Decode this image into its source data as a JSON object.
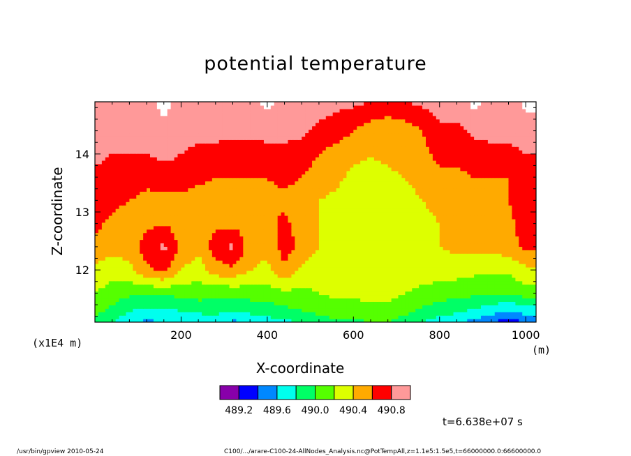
{
  "chart_data": {
    "type": "heatmap",
    "title": "potential temperature",
    "xlabel": "X-coordinate",
    "ylabel": "Z-coordinate",
    "x_scale_note": "(x1E4 m)",
    "x_unit": "(m)",
    "xlim": [
      0,
      1024
    ],
    "ylim": [
      11.1,
      14.9
    ],
    "x_ticks": [
      200,
      400,
      600,
      800,
      1000
    ],
    "x_tick_labels": [
      "200",
      "400",
      "600",
      "800",
      "1000"
    ],
    "y_ticks": [
      12,
      13,
      14
    ],
    "y_tick_labels": [
      "12",
      "13",
      "14"
    ],
    "time_label": "t=6.638e+07 s",
    "colorbar": {
      "levels": [
        489.0,
        489.2,
        489.4,
        489.6,
        489.8,
        490.0,
        490.2,
        490.4,
        490.6,
        490.8,
        491.0
      ],
      "colors": [
        "#8800aa",
        "#0000ff",
        "#0088ff",
        "#00ffee",
        "#00ff66",
        "#55ff00",
        "#ddff00",
        "#ffaa00",
        "#ff0000",
        "#ff9999"
      ],
      "labels": [
        "489.2",
        "489.6",
        "490.0",
        "490.4",
        "490.8"
      ],
      "label_values": [
        489.2,
        489.6,
        490.0,
        490.4,
        490.8
      ]
    },
    "field": {
      "x": [
        0,
        40,
        80,
        120,
        160,
        200,
        240,
        280,
        320,
        360,
        400,
        440,
        480,
        520,
        560,
        600,
        640,
        680,
        720,
        760,
        800,
        840,
        880,
        920,
        960,
        1000
      ],
      "z": [
        11.1,
        11.3,
        11.6,
        12.0,
        12.4,
        12.8,
        13.2,
        13.6,
        14.0,
        14.4,
        14.9
      ],
      "values": [
        [
          489.95,
          489.8,
          489.65,
          489.55,
          489.6,
          489.6,
          489.65,
          489.7,
          489.55,
          489.65,
          489.7,
          489.75,
          489.8,
          489.9,
          489.95,
          489.95,
          490.0,
          490.0,
          489.9,
          489.8,
          489.7,
          489.6,
          489.55,
          489.4,
          489.3,
          489.4
        ],
        [
          490.05,
          489.95,
          489.8,
          489.75,
          489.75,
          489.8,
          489.85,
          489.85,
          489.8,
          489.85,
          489.9,
          489.95,
          490.0,
          490.05,
          490.1,
          490.1,
          490.15,
          490.15,
          490.05,
          489.95,
          489.9,
          489.85,
          489.75,
          489.7,
          489.6,
          489.7
        ],
        [
          490.2,
          490.1,
          490.05,
          490.0,
          490.05,
          490.05,
          490.1,
          490.05,
          490.05,
          490.1,
          490.1,
          490.15,
          490.15,
          490.2,
          490.25,
          490.25,
          490.25,
          490.25,
          490.2,
          490.15,
          490.1,
          490.05,
          490.05,
          490.0,
          490.0,
          490.1
        ],
        [
          490.35,
          490.3,
          490.35,
          490.55,
          490.65,
          490.4,
          490.3,
          490.5,
          490.55,
          490.4,
          490.35,
          490.55,
          490.35,
          490.3,
          490.3,
          490.3,
          490.3,
          490.3,
          490.3,
          490.3,
          490.3,
          490.3,
          490.25,
          490.25,
          490.25,
          490.35
        ],
        [
          490.55,
          490.45,
          490.5,
          490.7,
          490.85,
          490.55,
          490.45,
          490.7,
          490.85,
          490.5,
          490.45,
          490.7,
          490.55,
          490.4,
          490.3,
          490.3,
          490.3,
          490.3,
          490.3,
          490.35,
          490.4,
          490.45,
          490.45,
          490.45,
          490.5,
          490.65
        ],
        [
          490.65,
          490.55,
          490.5,
          490.55,
          490.6,
          490.5,
          490.5,
          490.55,
          490.55,
          490.5,
          490.55,
          490.65,
          490.5,
          490.4,
          490.35,
          490.3,
          490.3,
          490.3,
          490.3,
          490.35,
          490.4,
          490.45,
          490.5,
          490.5,
          490.55,
          490.7
        ],
        [
          490.7,
          490.65,
          490.6,
          490.55,
          490.55,
          490.55,
          490.5,
          490.5,
          490.5,
          490.5,
          490.55,
          490.55,
          490.5,
          490.4,
          490.35,
          490.3,
          490.3,
          490.3,
          490.35,
          490.4,
          490.45,
          490.5,
          490.55,
          490.55,
          490.6,
          490.7
        ],
        [
          490.75,
          490.7,
          490.7,
          490.65,
          490.7,
          490.7,
          490.65,
          490.6,
          490.6,
          490.6,
          490.6,
          490.65,
          490.6,
          490.5,
          490.45,
          490.35,
          490.35,
          490.35,
          490.4,
          490.45,
          490.55,
          490.55,
          490.6,
          490.6,
          490.6,
          490.75
        ],
        [
          490.85,
          490.8,
          490.8,
          490.8,
          490.85,
          490.8,
          490.75,
          490.75,
          490.7,
          490.7,
          490.75,
          490.75,
          490.7,
          490.6,
          490.5,
          490.45,
          490.4,
          490.45,
          490.5,
          490.55,
          490.65,
          490.65,
          490.7,
          490.75,
          490.75,
          490.8
        ],
        [
          490.9,
          490.9,
          490.9,
          490.9,
          490.95,
          490.9,
          490.85,
          490.85,
          490.85,
          490.85,
          490.85,
          490.85,
          490.85,
          490.75,
          490.7,
          490.6,
          490.5,
          490.45,
          490.5,
          490.6,
          490.75,
          490.75,
          490.85,
          490.85,
          490.85,
          490.9
        ],
        [
          490.95,
          490.95,
          490.95,
          490.95,
          491.05,
          490.95,
          490.95,
          490.9,
          490.95,
          490.95,
          491.05,
          490.95,
          490.95,
          490.9,
          490.85,
          490.85,
          490.8,
          490.75,
          490.8,
          490.85,
          490.9,
          490.9,
          491.05,
          490.95,
          490.9,
          491.05
        ]
      ]
    }
  },
  "footer": {
    "left": "/usr/bin/gpview  2010-05-24",
    "right": "C100/.../arare-C100-24-AllNodes_Analysis.nc@PotTempAll,z=1.1e5:1.5e5,t=66000000.0:66600000.0"
  }
}
